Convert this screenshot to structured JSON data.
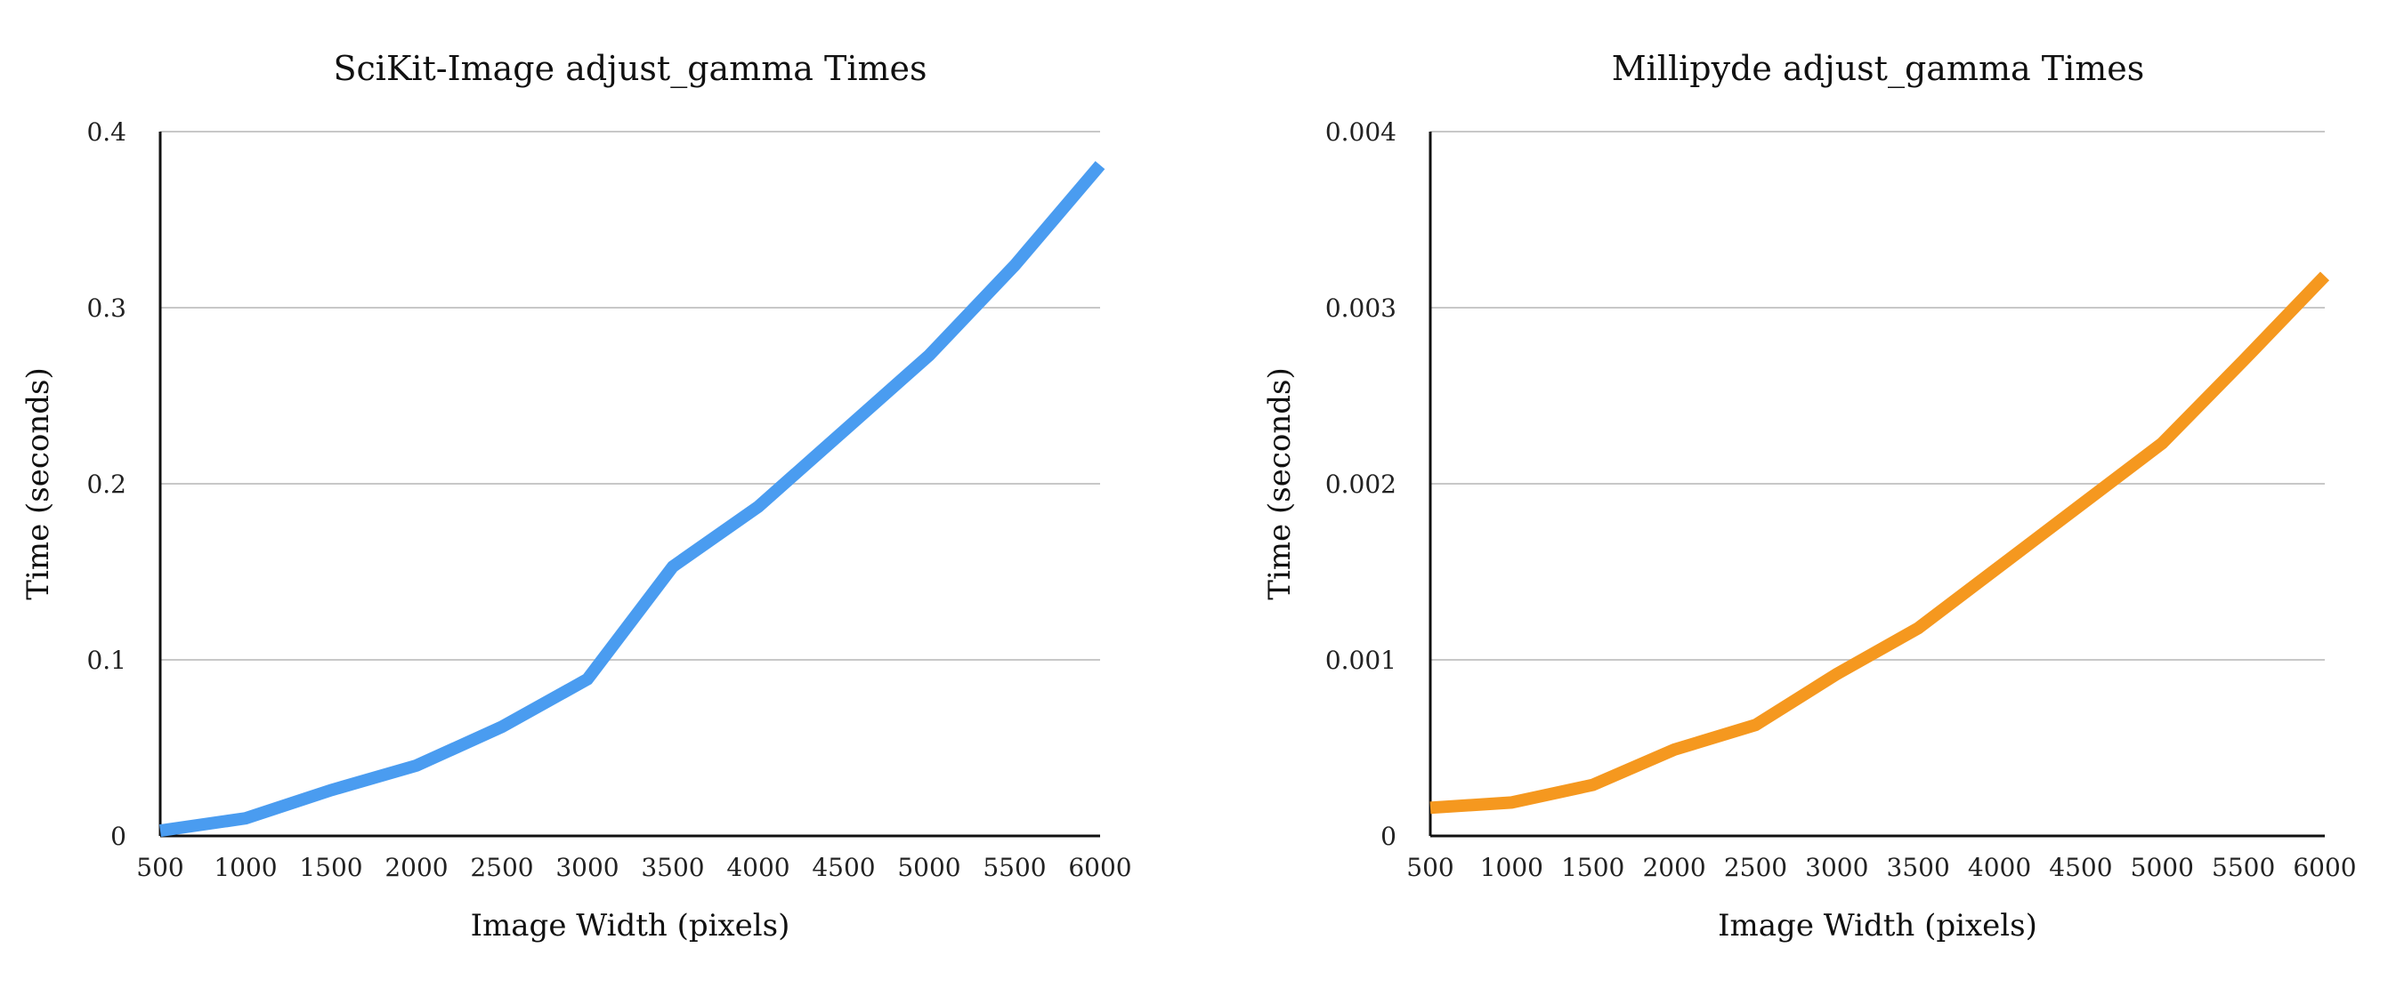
{
  "chart_data": [
    {
      "type": "line",
      "title": "SciKit-Image adjust_gamma Times",
      "xlabel": "Image Width (pixels)",
      "ylabel": "Time (seconds)",
      "x": [
        500,
        1000,
        1500,
        2000,
        2500,
        3000,
        3500,
        4000,
        4500,
        5000,
        5500,
        6000
      ],
      "xlim": [
        500,
        6000
      ],
      "ylim": [
        0,
        0.4
      ],
      "xticks": [
        500,
        1000,
        1500,
        2000,
        2500,
        3000,
        3500,
        4000,
        4500,
        5000,
        5500,
        6000
      ],
      "yticks": [
        "0",
        "0.1",
        "0.2",
        "0.3",
        "0.4"
      ],
      "ytick_values": [
        0,
        0.1,
        0.2,
        0.3,
        0.4
      ],
      "grid": "horizontal",
      "series": [
        {
          "color": "#4a9cf0",
          "values": [
            0.003,
            0.01,
            0.026,
            0.04,
            0.062,
            0.089,
            0.153,
            0.187,
            0.23,
            0.273,
            0.324,
            0.381
          ]
        }
      ]
    },
    {
      "type": "line",
      "title": "Millipyde adjust_gamma Times",
      "xlabel": "Image Width (pixels)",
      "ylabel": "Time (seconds)",
      "x": [
        500,
        1000,
        1500,
        2000,
        2500,
        3000,
        3500,
        4000,
        4500,
        5000,
        5500,
        6000
      ],
      "xlim": [
        500,
        6000
      ],
      "ylim": [
        0,
        0.004
      ],
      "xticks": [
        500,
        1000,
        1500,
        2000,
        2500,
        3000,
        3500,
        4000,
        4500,
        5000,
        5500,
        6000
      ],
      "yticks": [
        "0",
        "0.001",
        "0.002",
        "0.003",
        "0.004"
      ],
      "ytick_values": [
        0,
        0.001,
        0.002,
        0.003,
        0.004
      ],
      "grid": "horizontal",
      "series": [
        {
          "color": "#f5981f",
          "values": [
            0.00016,
            0.00019,
            0.00029,
            0.00049,
            0.00063,
            0.00092,
            0.00118,
            0.00153,
            0.00188,
            0.00223,
            0.0027,
            0.00318
          ]
        }
      ]
    }
  ]
}
